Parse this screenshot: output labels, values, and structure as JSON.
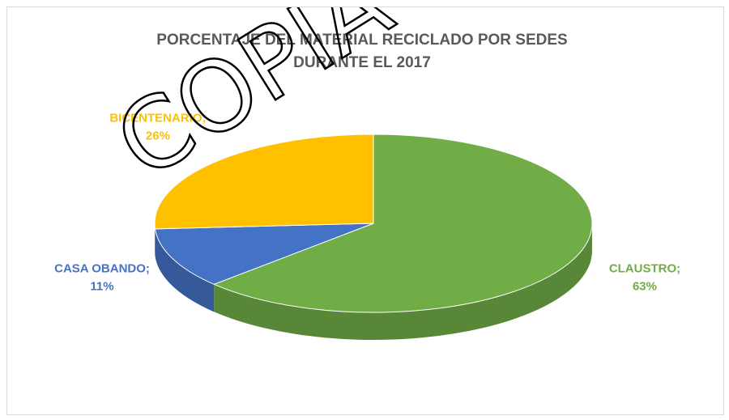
{
  "chart_data": {
    "type": "pie",
    "title": "PORCENTAJE DEL MATERIAL RECICLADO POR SEDES DURANTE EL 2017",
    "title_lines": [
      "PORCENTAJE DEL MATERIAL RECICLADO POR SEDES",
      "DURANTE EL 2017"
    ],
    "categories": [
      "CLAUSTRO",
      "CASA OBANDO",
      "BICENTENARIO"
    ],
    "values": [
      63,
      11,
      26
    ],
    "unit": "%",
    "labels": [
      {
        "name": "CLAUSTRO",
        "value": "63%"
      },
      {
        "name": "CASA OBANDO",
        "value": "11%"
      },
      {
        "name": "BICENTENARIO",
        "value": "26%"
      }
    ],
    "colors": [
      "#70AD47",
      "#4472C4",
      "#FFC000"
    ],
    "label_colors": [
      "#70AD47",
      "#4472C4",
      "#FFC000"
    ],
    "style": "3d",
    "legend": "none"
  },
  "watermark": "COPIA"
}
